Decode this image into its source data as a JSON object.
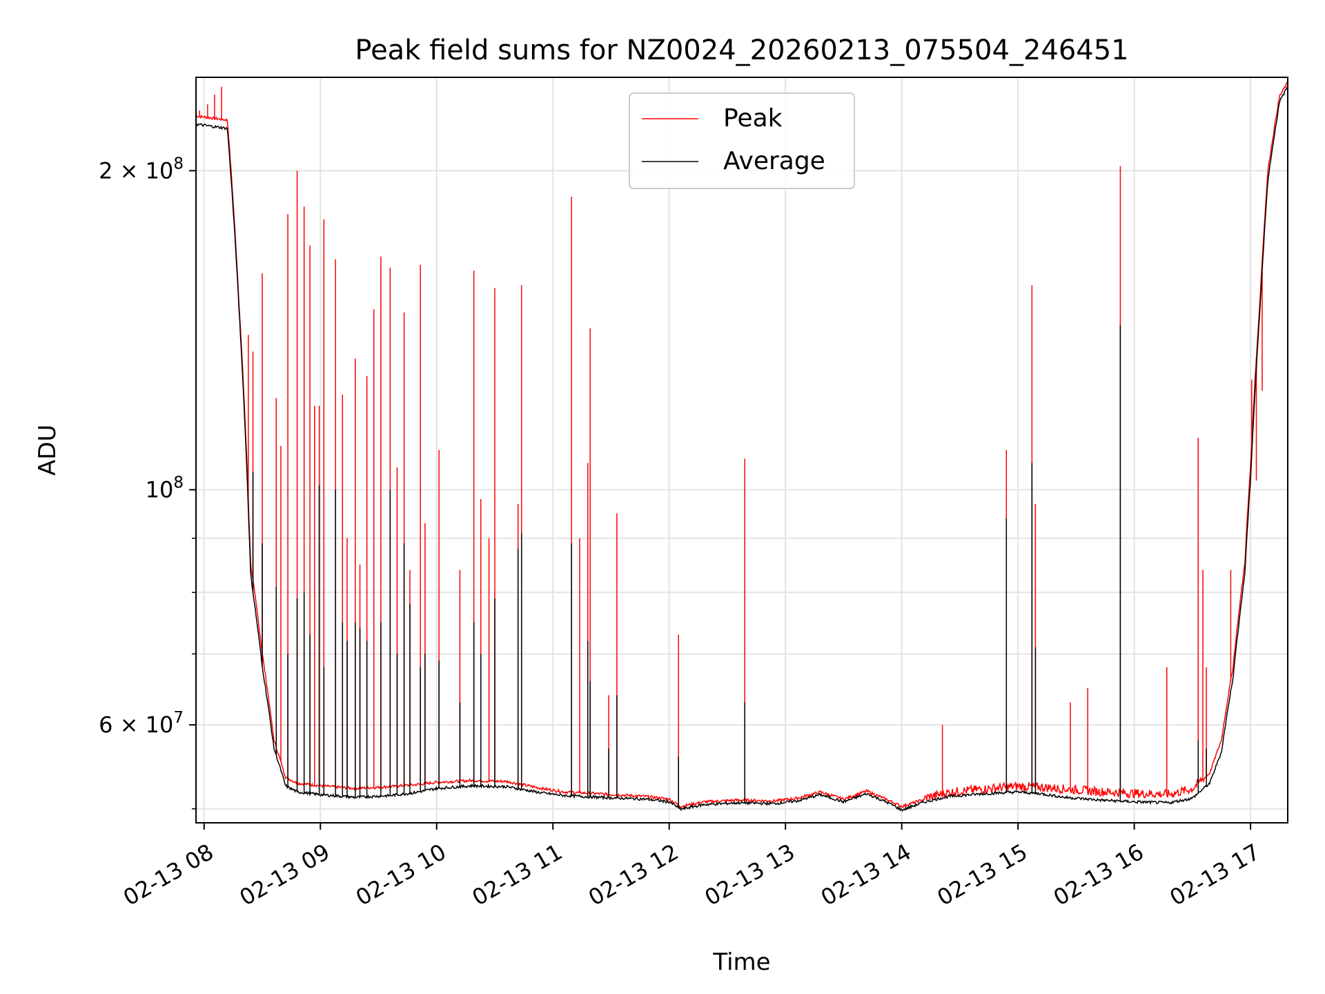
{
  "chart_data": {
    "type": "line",
    "title": "Peak field sums for NZ0024_20260213_075504_246451",
    "xlabel": "Time",
    "ylabel": "ADU",
    "yscale": "log",
    "xlim": [
      7.93,
      17.32
    ],
    "ylim": [
      48500000,
      245000000
    ],
    "grid": true,
    "legend_location": "upper-center",
    "x_tick_values": [
      8,
      9,
      10,
      11,
      12,
      13,
      14,
      15,
      16,
      17
    ],
    "x_tick_labels": [
      "02-13 08",
      "02-13 09",
      "02-13 10",
      "02-13 11",
      "02-13 12",
      "02-13 13",
      "02-13 14",
      "02-13 15",
      "02-13 16",
      "02-13 17"
    ],
    "y_major_ticks": [
      {
        "value": 60000000,
        "base": "6 × 10",
        "exp": "7"
      },
      {
        "value": 100000000,
        "base": "10",
        "exp": "8"
      },
      {
        "value": 200000000,
        "base": "2 × 10",
        "exp": "8"
      }
    ],
    "y_minor_ticks": [
      50000000,
      70000000,
      80000000,
      90000000,
      300000000
    ],
    "series": [
      {
        "name": "Peak",
        "color": "#ff0000",
        "baseline": [
          [
            7.93,
            225000000
          ],
          [
            8.2,
            223000000
          ],
          [
            8.3,
            150000000
          ],
          [
            8.4,
            85000000
          ],
          [
            8.5,
            70000000
          ],
          [
            8.6,
            58000000
          ],
          [
            8.7,
            53500000
          ],
          [
            8.8,
            52800000
          ],
          [
            9.0,
            52500000
          ],
          [
            9.3,
            52200000
          ],
          [
            9.6,
            52400000
          ],
          [
            9.8,
            52600000
          ],
          [
            10.0,
            52900000
          ],
          [
            10.3,
            53100000
          ],
          [
            10.6,
            53000000
          ],
          [
            10.9,
            52200000
          ],
          [
            11.1,
            51800000
          ],
          [
            11.4,
            51600000
          ],
          [
            11.8,
            51300000
          ],
          [
            12.0,
            51000000
          ],
          [
            12.1,
            50200000
          ],
          [
            12.3,
            50700000
          ],
          [
            12.6,
            50900000
          ],
          [
            12.9,
            50800000
          ],
          [
            13.1,
            51100000
          ],
          [
            13.3,
            51800000
          ],
          [
            13.5,
            51000000
          ],
          [
            13.7,
            51900000
          ],
          [
            13.9,
            50800000
          ],
          [
            14.0,
            50200000
          ],
          [
            14.2,
            51000000
          ],
          [
            14.4,
            51600000
          ],
          [
            14.7,
            52000000
          ],
          [
            15.0,
            52300000
          ],
          [
            15.2,
            52200000
          ],
          [
            15.4,
            52000000
          ],
          [
            15.7,
            51700000
          ],
          [
            16.0,
            51500000
          ],
          [
            16.3,
            51400000
          ],
          [
            16.5,
            52000000
          ],
          [
            16.65,
            54000000
          ],
          [
            16.75,
            58000000
          ],
          [
            16.85,
            68000000
          ],
          [
            16.95,
            85000000
          ],
          [
            17.0,
            105000000
          ],
          [
            17.08,
            150000000
          ],
          [
            17.15,
            200000000
          ],
          [
            17.25,
            235000000
          ],
          [
            17.32,
            242000000
          ]
        ],
        "spikes": [
          [
            7.96,
            228000000
          ],
          [
            8.03,
            231000000
          ],
          [
            8.09,
            236000000
          ],
          [
            8.15,
            240000000
          ],
          [
            8.38,
            140000000
          ],
          [
            8.42,
            135000000
          ],
          [
            8.5,
            160000000
          ],
          [
            8.62,
            122000000
          ],
          [
            8.66,
            110000000
          ],
          [
            8.72,
            182000000
          ],
          [
            8.8,
            200000000
          ],
          [
            8.86,
            185000000
          ],
          [
            8.91,
            170000000
          ],
          [
            8.95,
            120000000
          ],
          [
            8.99,
            120000000
          ],
          [
            9.03,
            180000000
          ],
          [
            9.13,
            165000000
          ],
          [
            9.19,
            123000000
          ],
          [
            9.23,
            90000000
          ],
          [
            9.3,
            133000000
          ],
          [
            9.34,
            85000000
          ],
          [
            9.4,
            128000000
          ],
          [
            9.46,
            148000000
          ],
          [
            9.52,
            166000000
          ],
          [
            9.6,
            162000000
          ],
          [
            9.66,
            105000000
          ],
          [
            9.72,
            147000000
          ],
          [
            9.77,
            84000000
          ],
          [
            9.86,
            163000000
          ],
          [
            9.9,
            93000000
          ],
          [
            10.02,
            109000000
          ],
          [
            10.2,
            84000000
          ],
          [
            10.32,
            161000000
          ],
          [
            10.38,
            98000000
          ],
          [
            10.45,
            90000000
          ],
          [
            10.5,
            155000000
          ],
          [
            10.7,
            97000000
          ],
          [
            10.73,
            156000000
          ],
          [
            11.16,
            189000000
          ],
          [
            11.23,
            90000000
          ],
          [
            11.3,
            106000000
          ],
          [
            11.32,
            142000000
          ],
          [
            11.48,
            64000000
          ],
          [
            11.55,
            95000000
          ],
          [
            12.08,
            73000000
          ],
          [
            12.65,
            107000000
          ],
          [
            14.35,
            60000000
          ],
          [
            14.9,
            109000000
          ],
          [
            15.12,
            156000000
          ],
          [
            15.15,
            97000000
          ],
          [
            15.45,
            63000000
          ],
          [
            15.6,
            65000000
          ],
          [
            15.88,
            202000000
          ],
          [
            16.28,
            68000000
          ],
          [
            16.55,
            112000000
          ],
          [
            16.59,
            84000000
          ],
          [
            16.62,
            68000000
          ],
          [
            16.83,
            84000000
          ],
          [
            17.01,
            127000000
          ],
          [
            17.05,
            102000000
          ],
          [
            17.1,
            124000000
          ]
        ]
      },
      {
        "name": "Average",
        "color": "#000000",
        "baseline": [
          [
            7.93,
            221000000
          ],
          [
            8.2,
            219000000
          ],
          [
            8.3,
            148000000
          ],
          [
            8.4,
            83000000
          ],
          [
            8.5,
            68000000
          ],
          [
            8.6,
            57000000
          ],
          [
            8.7,
            52500000
          ],
          [
            8.8,
            51800000
          ],
          [
            9.0,
            51500000
          ],
          [
            9.3,
            51200000
          ],
          [
            9.6,
            51400000
          ],
          [
            9.8,
            51700000
          ],
          [
            10.0,
            52200000
          ],
          [
            10.3,
            52500000
          ],
          [
            10.6,
            52400000
          ],
          [
            10.9,
            51700000
          ],
          [
            11.1,
            51400000
          ],
          [
            11.4,
            51200000
          ],
          [
            11.8,
            51000000
          ],
          [
            12.0,
            50700000
          ],
          [
            12.1,
            49900000
          ],
          [
            12.3,
            50400000
          ],
          [
            12.6,
            50600000
          ],
          [
            12.9,
            50500000
          ],
          [
            13.1,
            50800000
          ],
          [
            13.3,
            51500000
          ],
          [
            13.5,
            50700000
          ],
          [
            13.7,
            51600000
          ],
          [
            13.9,
            50500000
          ],
          [
            14.0,
            49800000
          ],
          [
            14.2,
            50700000
          ],
          [
            14.4,
            51300000
          ],
          [
            14.7,
            51600000
          ],
          [
            15.0,
            51800000
          ],
          [
            15.2,
            51600000
          ],
          [
            15.4,
            51200000
          ],
          [
            15.7,
            50900000
          ],
          [
            16.0,
            50700000
          ],
          [
            16.3,
            50600000
          ],
          [
            16.5,
            51100000
          ],
          [
            16.65,
            52800000
          ],
          [
            16.75,
            56500000
          ],
          [
            16.85,
            66500000
          ],
          [
            16.95,
            83000000
          ],
          [
            17.0,
            102000000
          ],
          [
            17.08,
            147000000
          ],
          [
            17.15,
            196000000
          ],
          [
            17.25,
            232000000
          ],
          [
            17.32,
            240000000
          ]
        ],
        "spikes": [
          [
            8.42,
            104000000
          ],
          [
            8.5,
            89000000
          ],
          [
            8.62,
            81000000
          ],
          [
            8.72,
            70000000
          ],
          [
            8.8,
            79000000
          ],
          [
            8.86,
            80000000
          ],
          [
            8.91,
            73000000
          ],
          [
            8.99,
            101000000
          ],
          [
            9.03,
            68000000
          ],
          [
            9.13,
            100000000
          ],
          [
            9.19,
            75000000
          ],
          [
            9.23,
            72000000
          ],
          [
            9.3,
            75000000
          ],
          [
            9.34,
            74000000
          ],
          [
            9.4,
            72000000
          ],
          [
            9.52,
            75000000
          ],
          [
            9.6,
            100000000
          ],
          [
            9.66,
            70000000
          ],
          [
            9.72,
            89000000
          ],
          [
            9.77,
            78000000
          ],
          [
            9.86,
            68000000
          ],
          [
            9.9,
            70000000
          ],
          [
            10.02,
            69000000
          ],
          [
            10.2,
            63000000
          ],
          [
            10.32,
            75000000
          ],
          [
            10.38,
            70000000
          ],
          [
            10.5,
            79000000
          ],
          [
            10.7,
            88000000
          ],
          [
            10.73,
            91000000
          ],
          [
            11.16,
            89000000
          ],
          [
            11.3,
            72000000
          ],
          [
            11.32,
            66000000
          ],
          [
            11.48,
            57000000
          ],
          [
            11.55,
            64000000
          ],
          [
            12.08,
            56000000
          ],
          [
            12.65,
            63000000
          ],
          [
            14.9,
            94000000
          ],
          [
            15.12,
            106000000
          ],
          [
            15.15,
            71000000
          ],
          [
            15.88,
            143000000
          ],
          [
            16.55,
            58000000
          ],
          [
            16.62,
            57000000
          ]
        ]
      }
    ]
  }
}
